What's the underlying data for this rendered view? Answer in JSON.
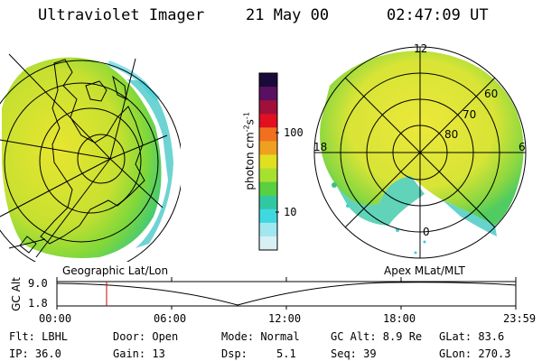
{
  "header": {
    "title": "Ultraviolet Imager",
    "date": "21 May 00",
    "time": "02:47:09 UT"
  },
  "colorbar": {
    "unit": "photon cm",
    "unit_exp1": "-2",
    "unit_mid": "s",
    "unit_exp2": "-1",
    "tick_high": "100",
    "tick_low": "10",
    "colors": [
      "#1a0a3a",
      "#5a1060",
      "#a0103a",
      "#e01020",
      "#f07020",
      "#f0a020",
      "#e0e020",
      "#a8e030",
      "#58d040",
      "#30c8a0",
      "#40d8e0",
      "#a0e8f0",
      "#d8f0f4"
    ]
  },
  "geo_view": {
    "label": "Geographic Lat/Lon"
  },
  "polar_view": {
    "label": "Apex MLat/MLT",
    "mlt_labels": {
      "top": "12",
      "left": "18",
      "right": "6",
      "bottom": "0"
    },
    "lat_labels": [
      "60",
      "70",
      "80"
    ]
  },
  "timeline": {
    "ylabel": "GC Alt",
    "y_high": "9.0",
    "y_low": "1.8",
    "ticks": [
      "00:00",
      "06:00",
      "12:00",
      "18:00",
      "23:59"
    ],
    "marker_time": "02:47"
  },
  "info": {
    "flt": "Flt: LBHL",
    "ip": "IP: 36.0",
    "door": "Door: Open",
    "gain": "Gain: 13",
    "mode": "Mode: Normal",
    "dsp_label": "Dsp:",
    "dsp_value": "5.1",
    "gc_alt": "GC Alt: 8.9 Re",
    "seq": "Seq: 39",
    "glat": "GLat: 83.6",
    "glon": "GLon: 270.3"
  }
}
